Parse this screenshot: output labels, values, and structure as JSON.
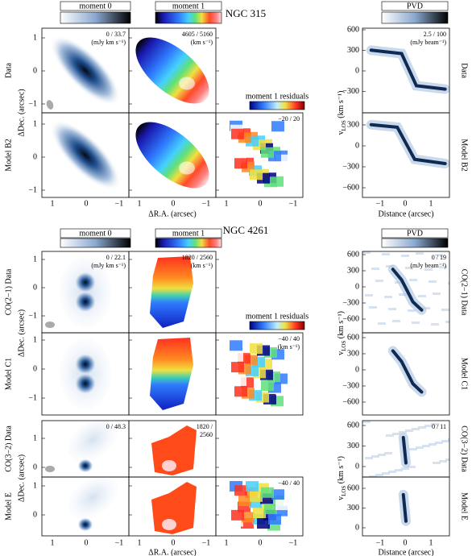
{
  "blocks": [
    {
      "title": "NGC 315",
      "colorbar_labels": {
        "moment0": "moment 0",
        "moment1": "moment 1",
        "residuals": "moment 1 residuals",
        "pvd": "PVD"
      },
      "axis_labels": {
        "dec": "ΔDec. (arcsec)",
        "ra": "ΔR.A. (arcsec)",
        "vlos": {
          "symbol": "v",
          "subscript": "LOS",
          "unit": " (km s⁻¹)"
        },
        "distance": "Distance (arcsec)"
      },
      "xticks": [
        "1",
        "0",
        "−1"
      ],
      "pvd_xticks": [
        "−1",
        "0",
        "1"
      ],
      "rows": [
        {
          "left_label": "Data",
          "right_label": "Data",
          "yticks": [
            "1",
            "0",
            "−1"
          ],
          "pvd_yticks": [
            "600",
            "300",
            "0",
            "−300"
          ],
          "moment0_text": [
            "0 / 33.7",
            "(mJy km s⁻¹)"
          ],
          "moment1_text": [
            "4605 / 5160",
            "(km s⁻¹)"
          ],
          "pvd_text": [
            "2.5 / 100",
            "(mJy beam⁻¹)"
          ]
        },
        {
          "left_label": "Model B2",
          "right_label": "Model B2",
          "yticks": [
            "1",
            "0",
            "−1"
          ],
          "pvd_yticks": [
            "300",
            "0",
            "−300",
            "−600"
          ],
          "residual_text": [
            "−20 / 20"
          ]
        }
      ]
    },
    {
      "title": "NGC 4261",
      "colorbar_labels": {
        "moment0": "moment 0",
        "moment1": "moment 1",
        "residuals": "moment 1 residuals",
        "pvd": "PVD"
      },
      "axis_labels": {
        "dec": "ΔDec. (arcsec)",
        "ra": "ΔR.A. (arcsec)",
        "vlos": {
          "symbol": "v",
          "subscript": "LOS",
          "unit": " (km s⁻¹)"
        },
        "distance": "Distance (arcsec)"
      },
      "xticks": [
        "1",
        "0",
        "−1"
      ],
      "pvd_xticks": [
        "−1",
        "0",
        "1"
      ],
      "rows": [
        {
          "left_label": "CO(2−1) Data",
          "right_label": "CO(2−1) Data",
          "yticks": [
            "1",
            "0",
            "−1"
          ],
          "pvd_yticks": [
            "600",
            "300",
            "0",
            "−300",
            "−600"
          ],
          "moment0_text": [
            "0 / 22.1",
            "(mJy km s⁻¹)"
          ],
          "moment1_text": [
            "1820 / 2560",
            "(km s⁻¹)"
          ],
          "pvd_text": [
            "0 / 19",
            "(mJy beam⁻¹)"
          ]
        },
        {
          "left_label": "Model C1",
          "right_label": "Model C1",
          "yticks": [
            "1",
            "0",
            "−1"
          ],
          "pvd_yticks": [
            "600",
            "300",
            "0",
            "−300",
            "−600"
          ],
          "residual_text": [
            "−40 / 40",
            "(km s⁻¹)"
          ]
        },
        {
          "left_label": "CO(3−2) Data",
          "right_label": "CO(3−2) Data",
          "yticks": [
            "1",
            "0"
          ],
          "pvd_yticks": [
            "600",
            "300",
            "0"
          ],
          "moment0_text": [
            "0 / 48.3"
          ],
          "moment1_text": [
            "1820 /",
            "2560"
          ],
          "pvd_text": [
            "0 / 11"
          ]
        },
        {
          "left_label": "Model E",
          "right_label": "Model E",
          "yticks": [
            "1",
            "0"
          ],
          "pvd_yticks": [
            "600",
            "300",
            "0"
          ],
          "residual_text": [
            "−40 / 40"
          ]
        }
      ]
    }
  ]
}
